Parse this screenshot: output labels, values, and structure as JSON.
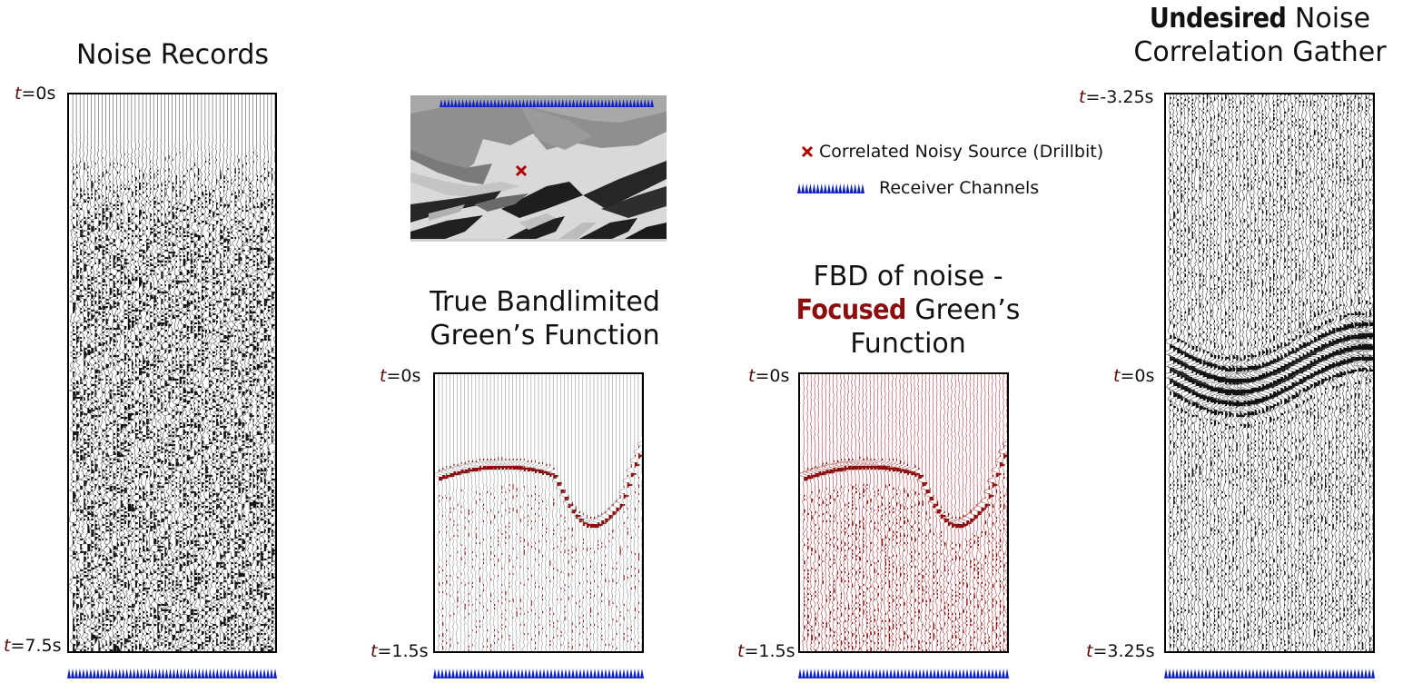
{
  "titles": {
    "noise_records": "Noise Records",
    "true_gf_line1": "True Bandlimited",
    "true_gf_line2": "Green’s Function",
    "fbd_line1": "FBD of noise -",
    "fbd_emph": "Focused",
    "fbd_line2_rest": " Green’s",
    "fbd_line3": "Function",
    "corr_emph": "Undesired",
    "corr_line1_rest": " Noise",
    "corr_line2": "Correlation Gather"
  },
  "time_labels": {
    "t_var": "t",
    "noise_top": "=0s",
    "noise_bottom": "=7.5s",
    "true_top": "=0s",
    "true_bottom": "=1.5s",
    "fbd_top": "=0s",
    "fbd_bottom": "=1.5s",
    "corr_top": "=-3.25s",
    "corr_mid": "=0s",
    "corr_bottom": "=3.25s"
  },
  "legend": {
    "source_label": "Correlated Noisy Source (Drillbit)",
    "receiver_label": "Receiver Channels"
  },
  "colors": {
    "receiver": "#1020c8",
    "source": "#b00000",
    "focused_trace": "#8b0d0d",
    "noise_trace": "#111111"
  }
}
